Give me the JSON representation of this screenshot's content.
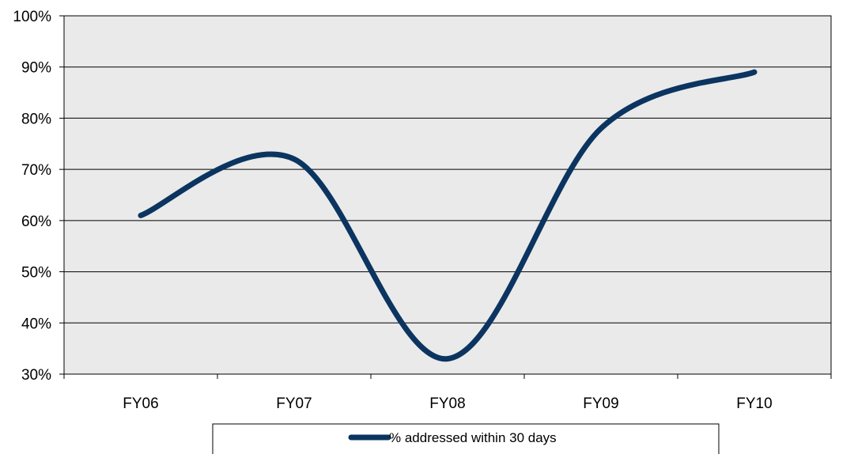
{
  "chart_data": {
    "type": "line",
    "title": "",
    "xlabel": "",
    "ylabel": "",
    "categories": [
      "FY06",
      "FY07",
      "FY08",
      "FY09",
      "FY10"
    ],
    "series": [
      {
        "name": "% addressed within 30 days",
        "values": [
          61,
          72,
          33,
          78,
          89
        ],
        "color": "#0b3460"
      }
    ],
    "ylim": [
      30,
      100
    ],
    "yticks": [
      "30%",
      "40%",
      "50%",
      "60%",
      "70%",
      "80%",
      "90%",
      "100%"
    ],
    "smooth": true,
    "grid": "horizontal",
    "plot_background": "#eaeaea",
    "legend_position": "bottom"
  }
}
